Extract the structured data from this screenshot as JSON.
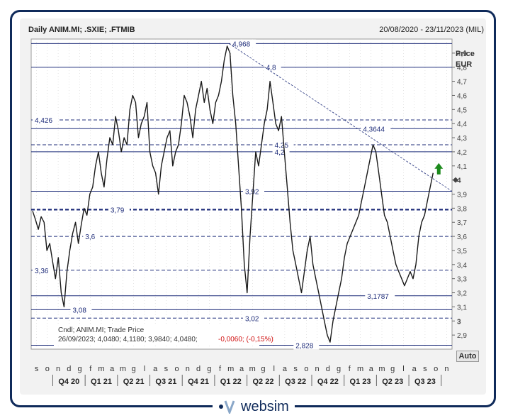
{
  "header": {
    "title": "Daily ANIM.MI; .SXIE; .FTMIB",
    "date_range": "20/08/2020 - 23/11/2023 (MIL)",
    "price_label_1": "Price",
    "price_label_2": "EUR",
    "auto_label": "Auto"
  },
  "legend": {
    "line1": "Cndl; ANIM.MI; Trade Price",
    "line2_values": "26/09/2023; 4,0480; 4,1180; 3,9840; 4,0480;",
    "line2_change": "-0,0060; (-0,15%)"
  },
  "logo": {
    "text": "websim"
  },
  "colors": {
    "line": "#1a1a1a",
    "level": "#1f2d7a",
    "navy": "#0f2a5a",
    "grid": "#c8c8c8",
    "arrow": "#1c8a1c",
    "change": "#d01010"
  },
  "chart_data": {
    "type": "line",
    "ylim": [
      2.8,
      5.0
    ],
    "y_ticks": [
      "2,9",
      "3",
      "3,1",
      "3,2",
      "3,3",
      "3,4",
      "3,5",
      "3,6",
      "3,7",
      "3,8",
      "3,9",
      "4",
      "4,1",
      "4,2",
      "4,3",
      "4,4",
      "4,5",
      "4,6",
      "4,7",
      "4,8",
      "4,9"
    ],
    "y_ticks_values": [
      2.9,
      3.0,
      3.1,
      3.2,
      3.3,
      3.4,
      3.5,
      3.6,
      3.7,
      3.8,
      3.9,
      4.0,
      4.1,
      4.2,
      4.3,
      4.4,
      4.5,
      4.6,
      4.7,
      4.8,
      4.9
    ],
    "bold_ticks": [
      "3",
      "4"
    ],
    "months": [
      "s",
      "o",
      "n",
      "d",
      "g",
      "f",
      "m",
      "a",
      "m",
      "g",
      "l",
      "a",
      "s",
      "o",
      "n",
      "d",
      "g",
      "f",
      "m",
      "a",
      "m",
      "g",
      "l",
      "a",
      "s",
      "o",
      "n",
      "d",
      "g",
      "f",
      "m",
      "a",
      "m",
      "g",
      "l",
      "a",
      "s",
      "o",
      "n"
    ],
    "quarters": [
      "Q4 20",
      "Q1 21",
      "Q2 21",
      "Q3 21",
      "Q4 21",
      "Q1 22",
      "Q2 22",
      "Q3 22",
      "Q4 22",
      "Q1 23",
      "Q2 23",
      "Q3 23"
    ],
    "levels": [
      {
        "value": 4.968,
        "label": "4,968",
        "style": "solid",
        "label_pos": 0.47
      },
      {
        "value": 4.8,
        "label": "4,8",
        "style": "solid",
        "label_pos": 0.55
      },
      {
        "value": 4.426,
        "label": "4,426",
        "style": "dashed",
        "label_pos": 0.0
      },
      {
        "value": 4.3644,
        "label": "4,3644",
        "style": "solid",
        "label_pos": 0.78
      },
      {
        "value": 4.25,
        "label": "4,25",
        "style": "dashed",
        "label_pos": 0.57
      },
      {
        "value": 4.2,
        "label": "4,2",
        "style": "solid",
        "label_pos": 0.57
      },
      {
        "value": 3.92,
        "label": "3,92",
        "style": "solid",
        "label_pos": 0.5
      },
      {
        "value": 3.79,
        "label": "3,79",
        "style": "bold-dashed",
        "label_pos": 0.18
      },
      {
        "value": 3.6,
        "label": "3,6",
        "style": "dashed",
        "label_pos": 0.12
      },
      {
        "value": 3.36,
        "label": "3,36",
        "style": "dashed",
        "label_pos": 0.0
      },
      {
        "value": 3.1787,
        "label": "3,1787",
        "style": "solid",
        "label_pos": 0.79
      },
      {
        "value": 3.08,
        "label": "3,08",
        "style": "solid",
        "label_pos": 0.09
      },
      {
        "value": 3.02,
        "label": "3,02",
        "style": "dashed",
        "label_pos": 0.5
      },
      {
        "value": 2.828,
        "label": "2,828",
        "style": "solid",
        "label_pos": 0.62
      }
    ],
    "trendline": {
      "from": {
        "x": 0.47,
        "y": 4.968
      },
      "to": {
        "x": 1.0,
        "y": 3.92
      }
    },
    "series": [
      {
        "values": [
          3.78,
          3.72,
          3.65,
          3.74,
          3.7,
          3.5,
          3.55,
          3.42,
          3.3,
          3.45,
          3.2,
          3.1,
          3.35,
          3.5,
          3.62,
          3.7,
          3.55,
          3.68,
          3.8,
          3.75,
          3.9,
          3.95,
          4.1,
          4.2,
          4.05,
          3.95,
          4.15,
          4.3,
          4.25,
          4.45,
          4.35,
          4.2,
          4.3,
          4.25,
          4.5,
          4.6,
          4.55,
          4.3,
          4.4,
          4.45,
          4.55,
          4.2,
          4.1,
          4.05,
          3.9,
          4.1,
          4.2,
          4.3,
          4.35,
          4.1,
          4.2,
          4.25,
          4.4,
          4.6,
          4.55,
          4.45,
          4.3,
          4.5,
          4.6,
          4.7,
          4.55,
          4.65,
          4.5,
          4.4,
          4.55,
          4.6,
          4.7,
          4.85,
          4.95,
          4.9,
          4.6,
          4.4,
          4.1,
          3.8,
          3.4,
          3.2,
          3.6,
          3.9,
          4.2,
          4.1,
          4.25,
          4.4,
          4.5,
          4.7,
          4.55,
          4.4,
          4.35,
          4.45,
          4.2,
          3.95,
          3.7,
          3.5,
          3.4,
          3.3,
          3.2,
          3.35,
          3.5,
          3.6,
          3.4,
          3.3,
          3.2,
          3.1,
          3.0,
          2.9,
          2.85,
          3.0,
          3.1,
          3.2,
          3.3,
          3.45,
          3.55,
          3.6,
          3.65,
          3.7,
          3.75,
          3.85,
          3.95,
          4.05,
          4.15,
          4.25,
          4.2,
          4.05,
          3.9,
          3.75,
          3.7,
          3.6,
          3.5,
          3.4,
          3.35,
          3.3,
          3.25,
          3.3,
          3.35,
          3.3,
          3.4,
          3.6,
          3.7,
          3.75,
          3.85,
          3.95,
          4.05
        ]
      }
    ]
  }
}
